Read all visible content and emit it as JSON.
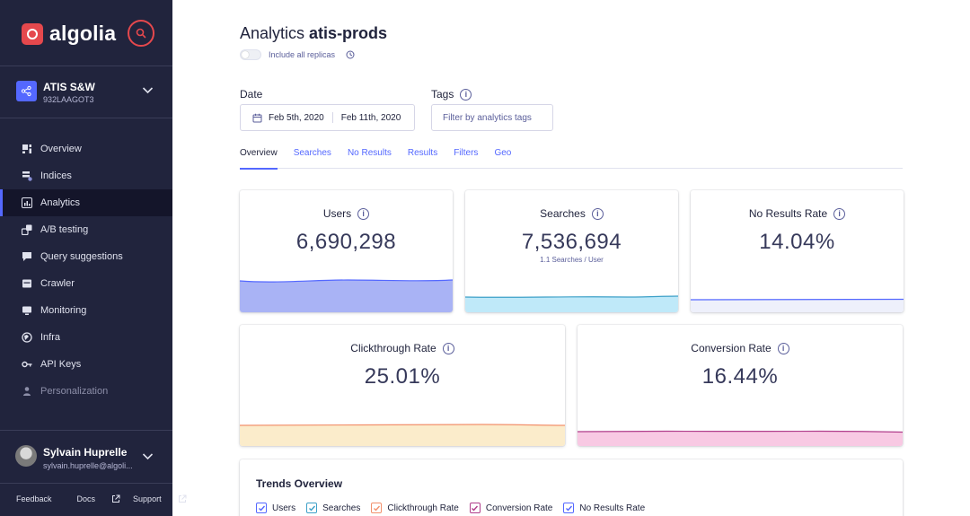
{
  "brand": {
    "name": "algolia"
  },
  "app": {
    "name": "ATIS S&W",
    "id": "932LAAGOT3"
  },
  "nav": [
    {
      "label": "Overview",
      "icon": "overview-icon"
    },
    {
      "label": "Indices",
      "icon": "indices-icon"
    },
    {
      "label": "Analytics",
      "icon": "analytics-icon",
      "active": true
    },
    {
      "label": "A/B testing",
      "icon": "ab-testing-icon"
    },
    {
      "label": "Query suggestions",
      "icon": "query-suggestions-icon"
    },
    {
      "label": "Crawler",
      "icon": "crawler-icon"
    },
    {
      "label": "Monitoring",
      "icon": "monitoring-icon"
    },
    {
      "label": "Infra",
      "icon": "infra-icon"
    },
    {
      "label": "API Keys",
      "icon": "api-keys-icon"
    },
    {
      "label": "Personalization",
      "icon": "personalization-icon",
      "disabled": true
    }
  ],
  "user": {
    "name": "Sylvain Huprelle",
    "email": "sylvain.huprelle@algoli..."
  },
  "footer": {
    "feedback": "Feedback",
    "docs": "Docs",
    "support": "Support"
  },
  "page": {
    "title_prefix": "Analytics",
    "index_name": "atis-prods",
    "replicas_label": "Include all replicas"
  },
  "filters": {
    "date_label": "Date",
    "date_start": "Feb 5th, 2020",
    "date_end": "Feb 11th, 2020",
    "tags_label": "Tags",
    "tags_placeholder": "Filter by analytics tags"
  },
  "tabs": [
    "Overview",
    "Searches",
    "No Results",
    "Results",
    "Filters",
    "Geo"
  ],
  "metrics": {
    "users": {
      "label": "Users",
      "value": "6,690,298",
      "color": "#5468ff",
      "fill": "#a9b3f5"
    },
    "searches": {
      "label": "Searches",
      "value": "7,536,694",
      "sub": "1.1 Searches / User",
      "color": "#3da0c8",
      "fill": "#bfe9f9"
    },
    "no_results": {
      "label": "No Results Rate",
      "value": "14.04%",
      "color": "#5468ff",
      "fill": "#eef0fb"
    },
    "clickthrough": {
      "label": "Clickthrough Rate",
      "value": "25.01%",
      "color": "#f2906c",
      "fill": "#fbeccb"
    },
    "conversion": {
      "label": "Conversion Rate",
      "value": "16.44%",
      "color": "#b03d8b",
      "fill": "#f8c9e3"
    }
  },
  "trends": {
    "title": "Trends Overview",
    "legend": [
      {
        "label": "Users",
        "color": "#5468ff"
      },
      {
        "label": "Searches",
        "color": "#3da0c8"
      },
      {
        "label": "Clickthrough Rate",
        "color": "#f2906c"
      },
      {
        "label": "Conversion Rate",
        "color": "#b03d8b"
      },
      {
        "label": "No Results Rate",
        "color": "#5468ff"
      }
    ]
  }
}
